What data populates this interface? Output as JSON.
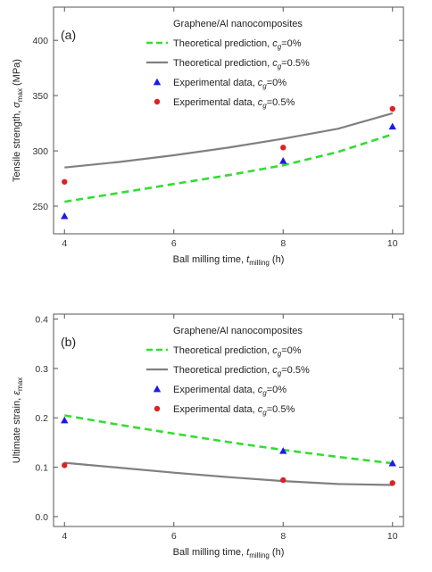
{
  "chart_data": [
    {
      "type": "line",
      "panel_label": "(a)",
      "legend_title": "Graphene/Al nanocomposites",
      "xlabel": {
        "main": "Ball milling time, ",
        "symbol": "t",
        "sub": "milling",
        "unit": " (h)"
      },
      "ylabel": {
        "main": "Tensile strength, ",
        "symbol": "σ",
        "sub": "max",
        "unit": " (MPa)"
      },
      "xlim": [
        3.8,
        10.2
      ],
      "ylim": [
        225,
        430
      ],
      "xticks": [
        4,
        6,
        8,
        10
      ],
      "yticks": [
        250,
        300,
        350,
        400
      ],
      "series": [
        {
          "kind": "line",
          "style": "dashed",
          "color": "#33dd33",
          "legend": {
            "text": "Theoretical prediction, ",
            "sym": "c",
            "sub": "g",
            "rest": "=0%"
          },
          "x": [
            4,
            5,
            6,
            7,
            8,
            9,
            10
          ],
          "y": [
            254,
            262,
            270,
            278,
            287,
            299,
            315
          ]
        },
        {
          "kind": "line",
          "style": "solid",
          "color": "#808080",
          "legend": {
            "text": "Theoretical prediction, ",
            "sym": "c",
            "sub": "g",
            "rest": "=0.5%"
          },
          "x": [
            4,
            5,
            6,
            7,
            8,
            9,
            10
          ],
          "y": [
            285,
            290,
            296,
            303,
            311,
            320,
            334
          ]
        },
        {
          "kind": "scatter",
          "marker": "triangle",
          "color": "#1a1aee",
          "legend": {
            "text": "Experimental data, ",
            "sym": "c",
            "sub": "g",
            "rest": "=0%"
          },
          "x": [
            4,
            8,
            10
          ],
          "y": [
            241,
            291,
            322
          ]
        },
        {
          "kind": "scatter",
          "marker": "circle",
          "color": "#dd2222",
          "legend": {
            "text": "Experimental data, ",
            "sym": "c",
            "sub": "g",
            "rest": "=0.5%"
          },
          "x": [
            4,
            8,
            10
          ],
          "y": [
            272,
            303,
            338
          ]
        }
      ]
    },
    {
      "type": "line",
      "panel_label": "(b)",
      "legend_title": "Graphene/Al nanocomposites",
      "xlabel": {
        "main": "Ball milling time, ",
        "symbol": "t",
        "sub": "milling",
        "unit": " (h)"
      },
      "ylabel": {
        "main": "Ultimate strain, ",
        "symbol": "ε",
        "sub": "max",
        "unit": ""
      },
      "xlim": [
        3.8,
        10.2
      ],
      "ylim": [
        -0.02,
        0.41
      ],
      "xticks": [
        4,
        6,
        8,
        10
      ],
      "yticks": [
        0.0,
        0.1,
        0.2,
        0.3,
        0.4
      ],
      "ytick_labels": [
        "0.0",
        "0.1",
        "0.2",
        "0.3",
        "0.4"
      ],
      "series": [
        {
          "kind": "line",
          "style": "dashed",
          "color": "#33dd33",
          "legend": {
            "text": "Theoretical prediction, ",
            "sym": "c",
            "sub": "g",
            "rest": "=0%"
          },
          "x": [
            4,
            5,
            6,
            7,
            8,
            9,
            10
          ],
          "y": [
            0.205,
            0.186,
            0.168,
            0.151,
            0.135,
            0.121,
            0.108
          ]
        },
        {
          "kind": "line",
          "style": "solid",
          "color": "#808080",
          "legend": {
            "text": "Theoretical prediction, ",
            "sym": "c",
            "sub": "g",
            "rest": "=0.5%"
          },
          "x": [
            4,
            5,
            6,
            7,
            8,
            9,
            10
          ],
          "y": [
            0.109,
            0.099,
            0.089,
            0.08,
            0.072,
            0.066,
            0.064
          ]
        },
        {
          "kind": "scatter",
          "marker": "triangle",
          "color": "#1a1aee",
          "legend": {
            "text": "Experimental data, ",
            "sym": "c",
            "sub": "g",
            "rest": "=0%"
          },
          "x": [
            4,
            8,
            10
          ],
          "y": [
            0.195,
            0.133,
            0.108
          ]
        },
        {
          "kind": "scatter",
          "marker": "circle",
          "color": "#dd2222",
          "legend": {
            "text": "Experimental data, ",
            "sym": "c",
            "sub": "g",
            "rest": "=0.5%"
          },
          "x": [
            4,
            8,
            10
          ],
          "y": [
            0.104,
            0.074,
            0.068
          ]
        }
      ]
    }
  ]
}
